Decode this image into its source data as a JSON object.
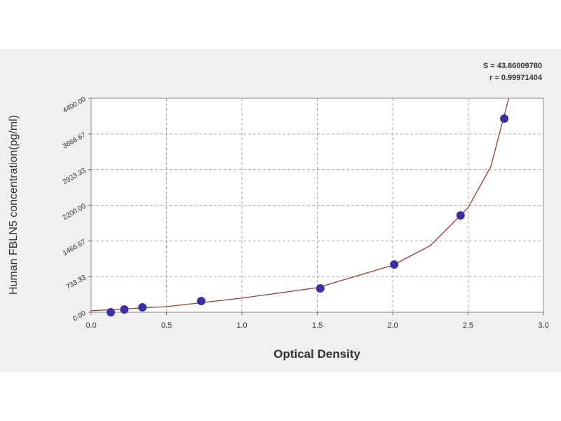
{
  "chart_data": {
    "type": "scatter",
    "fit_text": [
      "S = 43.86009780",
      "r = 0.99971404"
    ],
    "xlabel": "Optical Density",
    "ylabel": "Human FBLN5 concentration(pg/ml)",
    "x": [
      0.13,
      0.22,
      0.34,
      0.73,
      1.52,
      2.01,
      2.45,
      2.74
    ],
    "values": [
      0,
      58,
      101,
      231,
      490,
      981,
      1991,
      3982
    ],
    "color": "#3a2fa8",
    "curve": {
      "x": [
        0,
        0.5,
        1.0,
        1.5,
        2.0,
        2.25,
        2.5,
        2.65,
        2.77
      ],
      "values": [
        30,
        115,
        290,
        505,
        965,
        1370,
        2150,
        2990,
        4400
      ],
      "color": "#9a3b3b"
    },
    "xlim": [
      0,
      3
    ],
    "ylim": [
      0,
      4400
    ],
    "xticks": [
      {
        "value": 0,
        "label": "0.0"
      },
      0.5,
      {
        "value": 1,
        "label": "1.0"
      },
      1.5,
      {
        "value": 2,
        "label": "2.0"
      },
      2.5,
      {
        "value": 3,
        "label": "3.0"
      }
    ],
    "yticks": [
      {
        "value": 0,
        "label": "0.00"
      },
      {
        "value": 733.33,
        "label": "733.33"
      },
      {
        "value": 1466.67,
        "label": "1466.67"
      },
      {
        "value": 2200,
        "label": "2200.00"
      },
      {
        "value": 2933.33,
        "label": "2933.33"
      },
      {
        "value": 3666.67,
        "label": "3666.67"
      },
      {
        "value": 4400,
        "label": "4400.00"
      }
    ],
    "grid": true
  }
}
